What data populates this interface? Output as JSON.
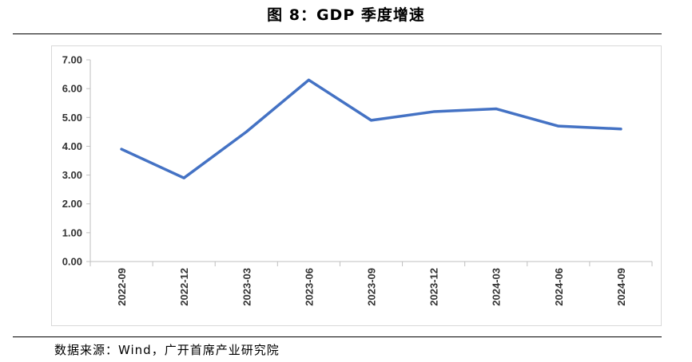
{
  "title": "图 8：GDP 季度增速",
  "source": "数据来源：Wind，广开首席产业研究院",
  "chart_data": {
    "type": "line",
    "title": "图 8：GDP 季度增速",
    "xlabel": "",
    "ylabel": "",
    "categories": [
      "2022-09",
      "2022-12",
      "2023-03",
      "2023-06",
      "2023-09",
      "2023-12",
      "2024-03",
      "2024-06",
      "2024-09"
    ],
    "series": [
      {
        "values": [
          3.9,
          2.9,
          4.5,
          6.3,
          4.9,
          5.2,
          5.3,
          4.7,
          4.6
        ]
      }
    ],
    "ylim": [
      0,
      7
    ],
    "yticks": [
      "0.00",
      "1.00",
      "2.00",
      "3.00",
      "4.00",
      "5.00",
      "6.00",
      "7.00"
    ],
    "grid": false,
    "legend": "none",
    "line_color": "#4472c4"
  }
}
